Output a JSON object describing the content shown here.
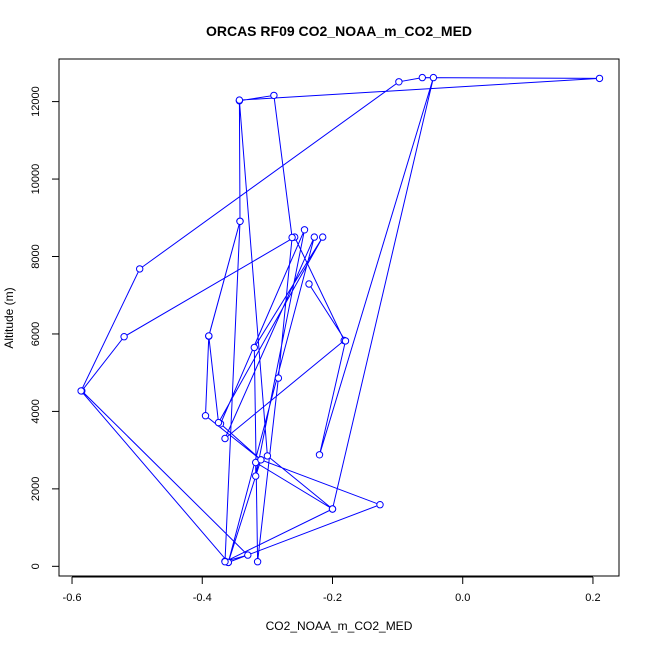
{
  "chart_data": {
    "type": "line",
    "title": "ORCAS RF09 CO2_NOAA_m_CO2_MED",
    "xlabel": "CO2_NOAA_m_CO2_MED",
    "ylabel": "Altitude (m)",
    "xlim": [
      -0.62,
      0.24
    ],
    "ylim": [
      -250,
      13100
    ],
    "xticks": [
      -0.6,
      -0.4,
      -0.2,
      0.0,
      0.2
    ],
    "xtick_labels": [
      "-0.6",
      "-0.4",
      "-0.2",
      "0.0",
      "0.2"
    ],
    "yticks": [
      0,
      2000,
      4000,
      6000,
      8000,
      10000,
      12000
    ],
    "ytick_labels": [
      "0",
      "2000",
      "4000",
      "6000",
      "8000",
      "10000",
      "12000"
    ],
    "grid": false,
    "legend": "none",
    "series": [
      {
        "color": "#0000ff",
        "marker": "open-circle",
        "points": [
          {
            "x": -0.365,
            "y": 130
          },
          {
            "x": -0.33,
            "y": 290
          },
          {
            "x": -0.585,
            "y": 4530
          },
          {
            "x": -0.52,
            "y": 5930
          },
          {
            "x": -0.258,
            "y": 8500
          },
          {
            "x": -0.182,
            "y": 5830
          },
          {
            "x": -0.365,
            "y": 3300
          },
          {
            "x": -0.228,
            "y": 8500
          },
          {
            "x": -0.36,
            "y": 100
          },
          {
            "x": -0.31,
            "y": 2750
          },
          {
            "x": -0.372,
            "y": 3680
          },
          {
            "x": -0.243,
            "y": 8690
          },
          {
            "x": -0.318,
            "y": 2330
          },
          {
            "x": -0.318,
            "y": 2680
          },
          {
            "x": -0.2,
            "y": 1480
          },
          {
            "x": -0.3,
            "y": 2850
          },
          {
            "x": -0.343,
            "y": 12020
          },
          {
            "x": -0.29,
            "y": 12160
          },
          {
            "x": -0.262,
            "y": 8490
          },
          {
            "x": -0.283,
            "y": 4860
          },
          {
            "x": -0.315,
            "y": 120
          },
          {
            "x": -0.32,
            "y": 5650
          },
          {
            "x": -0.215,
            "y": 8500
          },
          {
            "x": -0.375,
            "y": 3710
          },
          {
            "x": -0.39,
            "y": 5940
          },
          {
            "x": -0.342,
            "y": 8910
          },
          {
            "x": -0.343,
            "y": 12040
          },
          {
            "x": 0.21,
            "y": 12600
          },
          {
            "x": -0.062,
            "y": 12620
          },
          {
            "x": -0.098,
            "y": 12510
          },
          {
            "x": -0.496,
            "y": 7680
          },
          {
            "x": -0.586,
            "y": 4530
          },
          {
            "x": -0.36,
            "y": 100
          },
          {
            "x": -0.127,
            "y": 1590
          },
          {
            "x": -0.31,
            "y": 2750
          },
          {
            "x": -0.395,
            "y": 3890
          },
          {
            "x": -0.39,
            "y": 5950
          },
          {
            "x": -0.342,
            "y": 8910
          },
          {
            "x": -0.365,
            "y": 120
          },
          {
            "x": -0.2,
            "y": 1480
          },
          {
            "x": -0.045,
            "y": 12620
          },
          {
            "x": -0.22,
            "y": 2880
          },
          {
            "x": -0.18,
            "y": 5820
          },
          {
            "x": -0.236,
            "y": 7290
          }
        ]
      }
    ]
  }
}
